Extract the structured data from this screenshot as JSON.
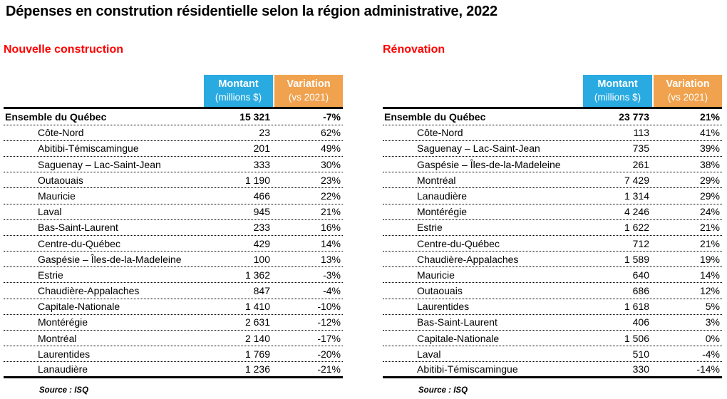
{
  "page": {
    "title": "Dépenses en constrution résidentielle selon la région administrative, 2022"
  },
  "colors": {
    "section_heading_red": "#FF0000",
    "montant_header_blue": "#29ABE2",
    "variation_header_orange": "#F0A24E",
    "text": "#000000",
    "background": "#FFFFFF"
  },
  "tables": [
    {
      "section_title": "Nouvelle construction",
      "columns": {
        "montant_label": "Montant",
        "montant_sublabel": "(millions $)",
        "variation_label": "Variation",
        "variation_sublabel": "(vs 2021)"
      },
      "total_row": {
        "region": "Ensemble du Québec",
        "montant": "15 321",
        "variation": "-7%"
      },
      "rows": [
        {
          "region": "Côte-Nord",
          "montant": "23",
          "variation": "62%"
        },
        {
          "region": "Abitibi-Témiscamingue",
          "montant": "201",
          "variation": "49%"
        },
        {
          "region": "Saguenay – Lac-Saint-Jean",
          "montant": "333",
          "variation": "30%"
        },
        {
          "region": "Outaouais",
          "montant": "1 190",
          "variation": "23%"
        },
        {
          "region": "Mauricie",
          "montant": "466",
          "variation": "22%"
        },
        {
          "region": "Laval",
          "montant": "945",
          "variation": "21%"
        },
        {
          "region": "Bas-Saint-Laurent",
          "montant": "233",
          "variation": "16%"
        },
        {
          "region": "Centre-du-Québec",
          "montant": "429",
          "variation": "14%"
        },
        {
          "region": "Gaspésie – Îles-de-la-Madeleine",
          "montant": "100",
          "variation": "13%"
        },
        {
          "region": "Estrie",
          "montant": "1 362",
          "variation": "-3%"
        },
        {
          "region": "Chaudière-Appalaches",
          "montant": "847",
          "variation": "-4%"
        },
        {
          "region": "Capitale-Nationale",
          "montant": "1 410",
          "variation": "-10%"
        },
        {
          "region": "Montérégie",
          "montant": "2 631",
          "variation": "-12%"
        },
        {
          "region": "Montréal",
          "montant": "2 140",
          "variation": "-17%"
        },
        {
          "region": "Laurentides",
          "montant": "1 769",
          "variation": "-20%"
        },
        {
          "region": "Lanaudière",
          "montant": "1 236",
          "variation": "-21%"
        }
      ],
      "source": "Source : ISQ"
    },
    {
      "section_title": "Rénovation",
      "columns": {
        "montant_label": "Montant",
        "montant_sublabel": "(millions $)",
        "variation_label": "Variation",
        "variation_sublabel": "(vs 2021)"
      },
      "total_row": {
        "region": "Ensemble du Québec",
        "montant": "23 773",
        "variation": "21%"
      },
      "rows": [
        {
          "region": "Côte-Nord",
          "montant": "113",
          "variation": "41%"
        },
        {
          "region": "Saguenay – Lac-Saint-Jean",
          "montant": "735",
          "variation": "39%"
        },
        {
          "region": "Gaspésie – Îles-de-la-Madeleine",
          "montant": "261",
          "variation": "38%"
        },
        {
          "region": "Montréal",
          "montant": "7 429",
          "variation": "29%"
        },
        {
          "region": "Lanaudière",
          "montant": "1 314",
          "variation": "29%"
        },
        {
          "region": "Montérégie",
          "montant": "4 246",
          "variation": "24%"
        },
        {
          "region": "Estrie",
          "montant": "1 622",
          "variation": "21%"
        },
        {
          "region": "Centre-du-Québec",
          "montant": "712",
          "variation": "21%"
        },
        {
          "region": "Chaudière-Appalaches",
          "montant": "1 589",
          "variation": "19%"
        },
        {
          "region": "Mauricie",
          "montant": "640",
          "variation": "14%"
        },
        {
          "region": "Outaouais",
          "montant": "686",
          "variation": "12%"
        },
        {
          "region": "Laurentides",
          "montant": "1 618",
          "variation": "5%"
        },
        {
          "region": "Bas-Saint-Laurent",
          "montant": "406",
          "variation": "3%"
        },
        {
          "region": "Capitale-Nationale",
          "montant": "1 506",
          "variation": "0%"
        },
        {
          "region": "Laval",
          "montant": "510",
          "variation": "-4%"
        },
        {
          "region": "Abitibi-Témiscamingue",
          "montant": "330",
          "variation": "-14%"
        }
      ],
      "source": "Source : ISQ"
    }
  ]
}
